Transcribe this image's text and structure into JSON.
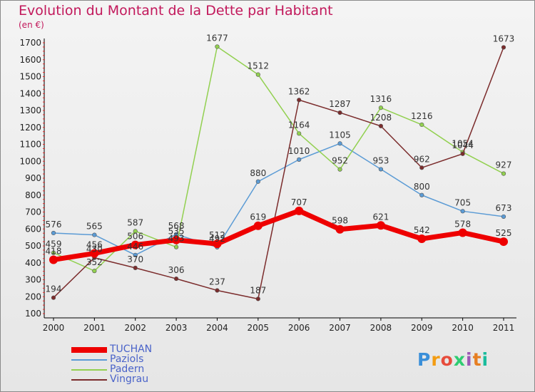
{
  "title": "Evolution du Montant de la Dette par Habitant",
  "unit": "(en €)",
  "logo": {
    "letters": [
      "P",
      "r",
      "o",
      "x",
      "i",
      "t",
      "i"
    ],
    "colors": [
      "#3a8fd9",
      "#f39c12",
      "#e74c3c",
      "#2ecc71",
      "#9b59b6",
      "#e67e22",
      "#1abc9c"
    ]
  },
  "chart_data": {
    "type": "line",
    "title": "Evolution du Montant de la Dette par Habitant",
    "ylabel": "(en €)",
    "xlabel": "",
    "x": [
      "2000",
      "2001",
      "2002",
      "2003",
      "2004",
      "2005",
      "2006",
      "2007",
      "2008",
      "2009",
      "2010",
      "2011"
    ],
    "ylim": [
      100,
      1700
    ],
    "yticks": [
      100,
      200,
      300,
      400,
      500,
      600,
      700,
      800,
      900,
      1000,
      1100,
      1200,
      1300,
      1400,
      1500,
      1600,
      1700
    ],
    "grid": false,
    "legend_position": "bottom-left",
    "series": [
      {
        "name": "TUCHAN",
        "color": "#ee0000",
        "width": 7,
        "values": [
          418,
          456,
          506,
          535,
          512,
          619,
          707,
          598,
          621,
          542,
          578,
          525
        ]
      },
      {
        "name": "Paziols",
        "color": "#5b9bd5",
        "width": 1.5,
        "values": [
          576,
          565,
          446,
          568,
          492,
          880,
          1010,
          1105,
          953,
          800,
          705,
          673
        ]
      },
      {
        "name": "Padern",
        "color": "#92d050",
        "width": 1.5,
        "values": [
          459,
          352,
          587,
          493,
          1677,
          1512,
          1164,
          952,
          1316,
          1216,
          1054,
          927
        ]
      },
      {
        "name": "Vingrau",
        "color": "#7b2c2c",
        "width": 1.5,
        "values": [
          194,
          430,
          370,
          306,
          237,
          187,
          1362,
          1287,
          1208,
          962,
          1044,
          1673
        ]
      }
    ]
  }
}
